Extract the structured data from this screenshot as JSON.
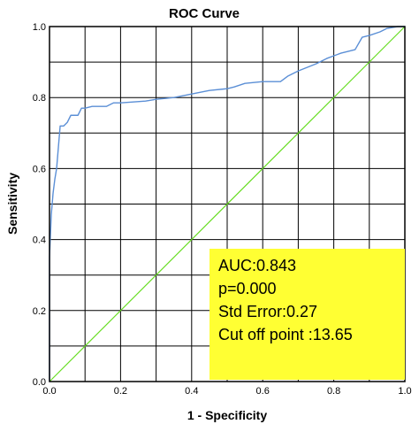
{
  "chart_data": {
    "type": "line",
    "title": "ROC Curve",
    "xlabel": "1 - Specificity",
    "ylabel": "Sensitivity",
    "xlim": [
      0,
      1
    ],
    "ylim": [
      0,
      1
    ],
    "x_ticks": [
      "0.0",
      "0.2",
      "0.4",
      "0.6",
      "0.8",
      "1.0"
    ],
    "y_ticks": [
      "0.0",
      "0.2",
      "0.4",
      "0.6",
      "0.8",
      "1.0"
    ],
    "grid": true,
    "legend": "none",
    "series": [
      {
        "color": "#5b8fd6",
        "points": [
          [
            0.0,
            0.0
          ],
          [
            0.0,
            0.35
          ],
          [
            0.005,
            0.47
          ],
          [
            0.01,
            0.53
          ],
          [
            0.015,
            0.57
          ],
          [
            0.02,
            0.6
          ],
          [
            0.025,
            0.66
          ],
          [
            0.03,
            0.72
          ],
          [
            0.04,
            0.72
          ],
          [
            0.05,
            0.73
          ],
          [
            0.06,
            0.75
          ],
          [
            0.07,
            0.75
          ],
          [
            0.08,
            0.75
          ],
          [
            0.09,
            0.77
          ],
          [
            0.1,
            0.77
          ],
          [
            0.12,
            0.775
          ],
          [
            0.16,
            0.775
          ],
          [
            0.18,
            0.785
          ],
          [
            0.2,
            0.785
          ],
          [
            0.27,
            0.79
          ],
          [
            0.3,
            0.795
          ],
          [
            0.35,
            0.8
          ],
          [
            0.4,
            0.81
          ],
          [
            0.45,
            0.82
          ],
          [
            0.5,
            0.825
          ],
          [
            0.52,
            0.83
          ],
          [
            0.55,
            0.84
          ],
          [
            0.6,
            0.845
          ],
          [
            0.65,
            0.845
          ],
          [
            0.67,
            0.86
          ],
          [
            0.7,
            0.875
          ],
          [
            0.75,
            0.895
          ],
          [
            0.78,
            0.91
          ],
          [
            0.82,
            0.925
          ],
          [
            0.86,
            0.935
          ],
          [
            0.88,
            0.97
          ],
          [
            0.9,
            0.975
          ],
          [
            0.93,
            0.985
          ],
          [
            0.95,
            0.995
          ],
          [
            0.98,
            1.0
          ],
          [
            1.0,
            1.0
          ]
        ]
      },
      {
        "color": "#66dd22",
        "points": [
          [
            0,
            0
          ],
          [
            1,
            1
          ]
        ]
      }
    ],
    "annotation": {
      "background": "#ffff33",
      "lines": [
        "AUC:0.843",
        "p=0.000",
        "Std Error:0.27",
        "Cut off point :13.65"
      ]
    }
  }
}
